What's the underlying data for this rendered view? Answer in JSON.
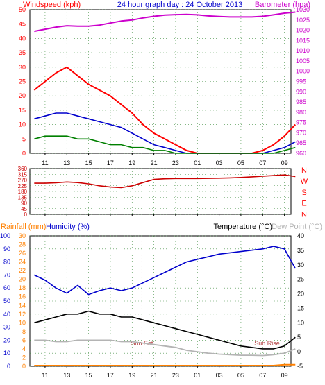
{
  "chart_data": [
    {
      "type": "line",
      "title": "24 hour graph day : 24 October 2013",
      "left_axis_label": "Windspeed (kph)",
      "right_axis_label": "Barometer (hpa)",
      "ylim_left": [
        0,
        50
      ],
      "ylim_right": [
        960,
        1030
      ],
      "left_ticks": [
        "0",
        "5",
        "10",
        "15",
        "20",
        "25",
        "30",
        "35",
        "40",
        "45",
        "50"
      ],
      "right_ticks": [
        "960",
        "965",
        "970",
        "975",
        "980",
        "985",
        "990",
        "995",
        "1000",
        "1005",
        "1010",
        "1015",
        "1020",
        "1025",
        "1030"
      ],
      "x_ticks": [
        "11",
        "13",
        "15",
        "17",
        "19",
        "21",
        "23",
        "01",
        "03",
        "05",
        "07",
        "09"
      ],
      "grid": true,
      "colors": {
        "gust": "#ff0000",
        "average": "#0000cc",
        "min": "#008000",
        "barometer": "#cc00cc"
      },
      "series": [
        {
          "x": [
            10,
            11,
            12,
            13,
            14,
            15,
            16,
            17,
            18,
            19,
            20,
            21,
            22,
            23,
            24,
            25,
            26,
            27,
            28,
            29,
            30,
            31,
            32,
            33,
            34
          ],
          "values": [
            22,
            25,
            28,
            30,
            27,
            24,
            22,
            20,
            17,
            14,
            10,
            7,
            5,
            3,
            1,
            0,
            0,
            0,
            0,
            0,
            0,
            1,
            3,
            6,
            10
          ]
        },
        {
          "x": [
            10,
            11,
            12,
            13,
            14,
            15,
            16,
            17,
            18,
            19,
            20,
            21,
            22,
            23,
            24,
            25,
            26,
            27,
            28,
            29,
            30,
            31,
            32,
            33,
            34
          ],
          "values": [
            12,
            13,
            14,
            14,
            13,
            12,
            11,
            10,
            9,
            7,
            5,
            3,
            2,
            1,
            0,
            0,
            0,
            0,
            0,
            0,
            0,
            0,
            1,
            2,
            4
          ]
        },
        {
          "x": [
            10,
            11,
            12,
            13,
            14,
            15,
            16,
            17,
            18,
            19,
            20,
            21,
            22,
            23,
            24,
            25,
            26,
            27,
            28,
            29,
            30,
            31,
            32,
            33,
            34
          ],
          "values": [
            5,
            6,
            6,
            6,
            5,
            5,
            4,
            3,
            3,
            2,
            2,
            1,
            1,
            0,
            0,
            0,
            0,
            0,
            0,
            0,
            0,
            0,
            0,
            1,
            2
          ]
        },
        {
          "x": [
            10,
            11,
            12,
            13,
            14,
            15,
            16,
            17,
            18,
            19,
            20,
            21,
            22,
            23,
            24,
            25,
            26,
            27,
            28,
            29,
            30,
            31,
            32,
            33,
            34
          ],
          "values": [
            1019.5,
            1020.5,
            1021.5,
            1022.2,
            1022.0,
            1022.0,
            1022.5,
            1023.5,
            1024.5,
            1025.0,
            1026.0,
            1026.8,
            1027.4,
            1027.6,
            1027.7,
            1027.5,
            1027.0,
            1026.7,
            1026.5,
            1026.5,
            1026.5,
            1026.8,
            1027.5,
            1028.3,
            1028.8
          ]
        }
      ]
    },
    {
      "type": "line",
      "right_axis_label": [
        "N",
        "W",
        "S",
        "E",
        "N"
      ],
      "ylim": [
        0,
        360
      ],
      "left_ticks": [
        "0",
        "45",
        "90",
        "135",
        "180",
        "225",
        "270",
        "315",
        "360"
      ],
      "color": "#cc0000",
      "series": [
        {
          "x": [
            10,
            11,
            12,
            13,
            14,
            15,
            16,
            17,
            18,
            19,
            20,
            21,
            22,
            23,
            24,
            25,
            26,
            27,
            28,
            29,
            30,
            31,
            32,
            33,
            34
          ],
          "values": [
            245,
            245,
            248,
            255,
            250,
            240,
            225,
            215,
            210,
            225,
            250,
            275,
            280,
            282,
            282,
            282,
            283,
            285,
            287,
            290,
            295,
            300,
            305,
            310,
            298
          ]
        }
      ]
    },
    {
      "type": "line",
      "labels": {
        "rainfall": "Rainfall (mm)",
        "humidity": "Humidity (%)",
        "temperature": "Temperature (°C)",
        "dewpoint": "Dew Point (°C)"
      },
      "annotations": [
        "Sun Set",
        "Sun Rise"
      ],
      "humidity_ticks": [
        "0",
        "10",
        "20",
        "30",
        "40",
        "50",
        "60",
        "70",
        "80",
        "90",
        "100"
      ],
      "rain_ticks": [
        "0",
        "2",
        "4",
        "6",
        "8",
        "10",
        "12",
        "14",
        "16",
        "18",
        "20",
        "22",
        "24",
        "26",
        "28",
        "30"
      ],
      "temp_ticks": [
        "-5",
        "0",
        "5",
        "10",
        "15",
        "20",
        "25",
        "30",
        "35",
        "40"
      ],
      "ylim_humidity": [
        0,
        100
      ],
      "ylim_temperature": [
        -5,
        40
      ],
      "colors": {
        "humidity": "#0000cc",
        "temperature": "#000000",
        "dewpoint": "#b4b4b4",
        "rainfall": "#ff8000"
      },
      "series": [
        {
          "x": [
            10,
            11,
            12,
            13,
            14,
            15,
            16,
            17,
            18,
            19,
            20,
            21,
            22,
            23,
            24,
            25,
            26,
            27,
            28,
            29,
            30,
            31,
            32,
            33,
            34
          ],
          "values": [
            70,
            66,
            60,
            56,
            62,
            55,
            58,
            60,
            58,
            60,
            64,
            68,
            72,
            76,
            80,
            82,
            84,
            86,
            87,
            88,
            89,
            90,
            92,
            90,
            75
          ]
        },
        {
          "x": [
            10,
            11,
            12,
            13,
            14,
            15,
            16,
            17,
            18,
            19,
            20,
            21,
            22,
            23,
            24,
            25,
            26,
            27,
            28,
            29,
            30,
            31,
            32,
            33,
            34
          ],
          "values": [
            10,
            11,
            12,
            13,
            13,
            14,
            13,
            13,
            12,
            12,
            11,
            10,
            9,
            8,
            7,
            6,
            5,
            4,
            3,
            2,
            1.5,
            1,
            1,
            2,
            5
          ]
        },
        {
          "x": [
            10,
            11,
            12,
            13,
            14,
            15,
            16,
            17,
            18,
            19,
            20,
            21,
            22,
            23,
            24,
            25,
            26,
            27,
            28,
            29,
            30,
            31,
            32,
            33,
            34
          ],
          "values": [
            4,
            4,
            3.5,
            3.5,
            4,
            4,
            4,
            4,
            3.5,
            3.5,
            3,
            2.5,
            2,
            1.5,
            0.5,
            0,
            -0.5,
            -0.8,
            -1,
            -1.2,
            -1.2,
            -1.3,
            -1,
            -0.5,
            1
          ]
        },
        {
          "x": [
            10,
            11,
            12,
            13,
            14,
            15,
            16,
            17,
            18,
            19,
            20,
            21,
            22,
            23,
            24,
            25,
            26,
            27,
            28,
            29,
            30,
            31,
            32,
            33,
            34
          ],
          "values": [
            0,
            0,
            0,
            0,
            0,
            0,
            0,
            0,
            0,
            0,
            0,
            0,
            0,
            0,
            0,
            0,
            0,
            0,
            0,
            0,
            0,
            0,
            0,
            0.2,
            0.2
          ]
        }
      ]
    }
  ]
}
